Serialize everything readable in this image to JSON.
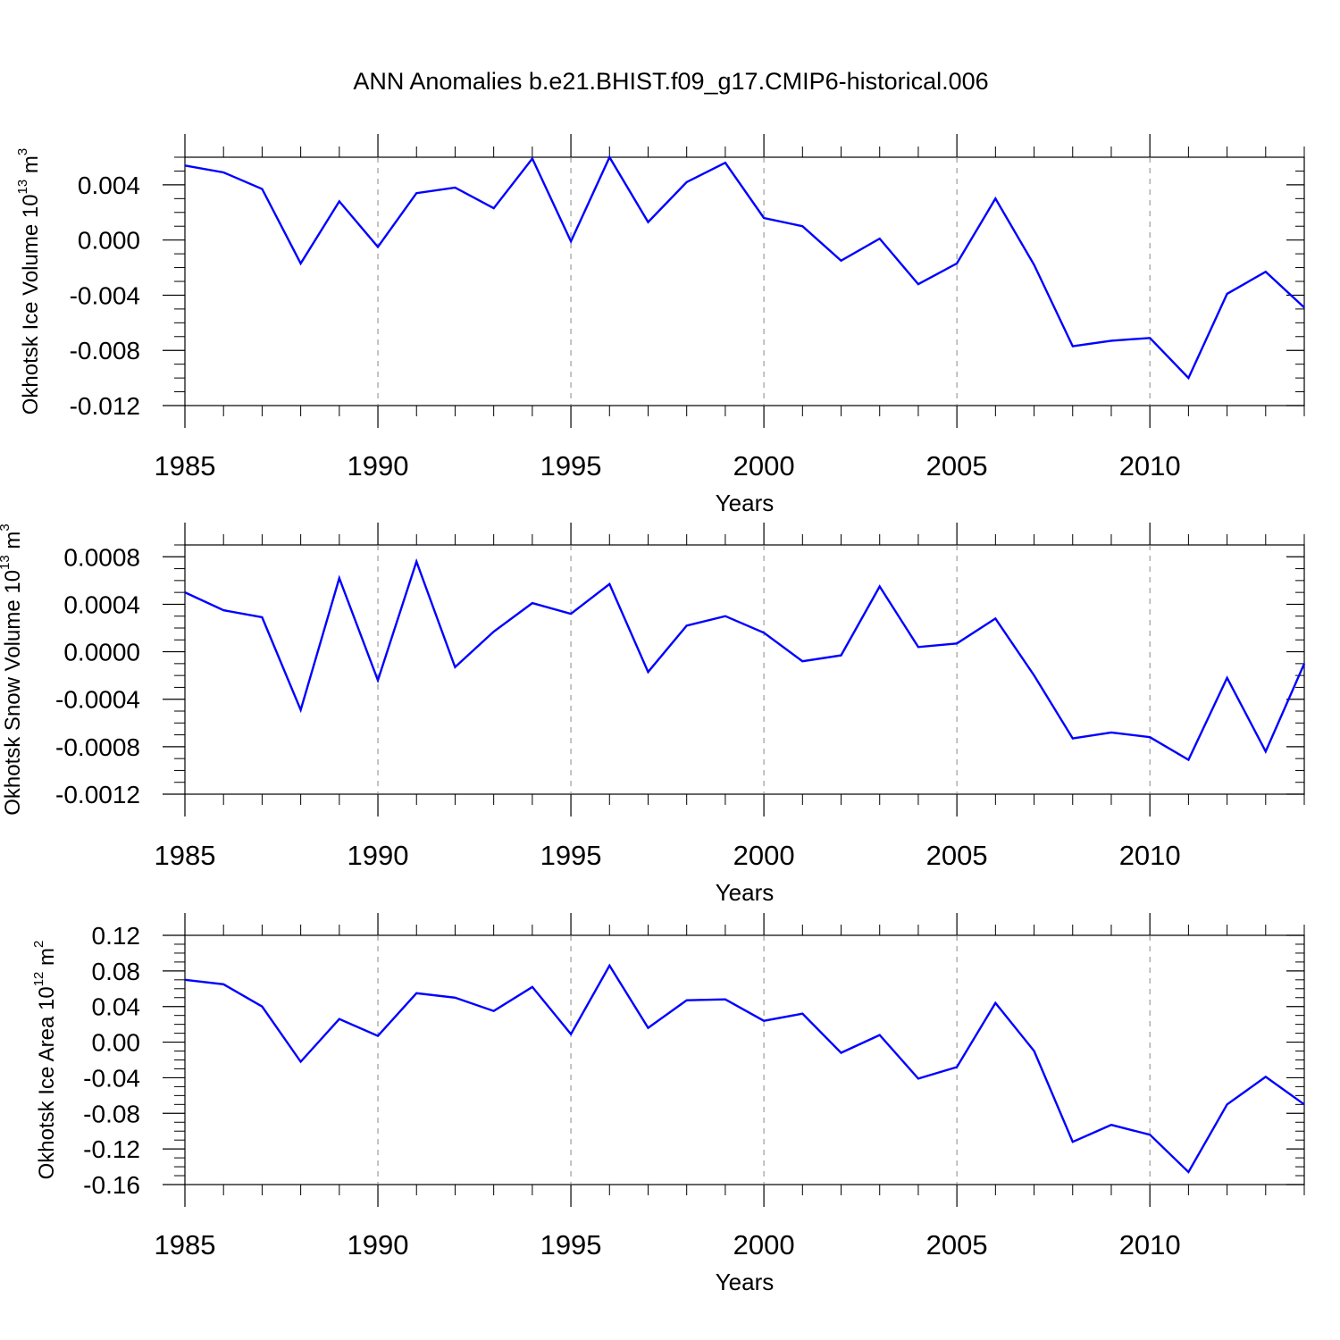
{
  "title": "ANN Anomalies b.e21.BHIST.f09_g17.CMIP6-historical.006",
  "colors": {
    "line": "#0000ff",
    "axis": "#000000",
    "grid": "#888888"
  },
  "chart_data": [
    {
      "type": "line",
      "ylabel": {
        "text": "Okhotsk Ice Volume 10",
        "exp": "13",
        "unit": " m",
        "unit_exp": "3"
      },
      "xlabel": "Years",
      "xlim": [
        1985,
        2014
      ],
      "ylim": [
        -0.012,
        0.006
      ],
      "x_ticks": [
        1985,
        1990,
        1995,
        2000,
        2005,
        2010
      ],
      "y_ticks": [
        0.004,
        0.0,
        -0.004,
        -0.008,
        -0.012
      ],
      "y_tick_labels": [
        "0.004",
        "0.000",
        "-0.004",
        "-0.008",
        "-0.012"
      ],
      "grid": "vertical dashed at major x ticks",
      "x": [
        1985,
        1986,
        1987,
        1988,
        1989,
        1990,
        1991,
        1992,
        1993,
        1994,
        1995,
        1996,
        1997,
        1998,
        1999,
        2000,
        2001,
        2002,
        2003,
        2004,
        2005,
        2006,
        2007,
        2008,
        2009,
        2010,
        2011,
        2012,
        2013,
        2014
      ],
      "values": [
        0.0054,
        0.0049,
        0.0037,
        -0.0017,
        0.0028,
        -0.0005,
        0.0034,
        0.0038,
        0.0023,
        0.0059,
        -0.0001,
        0.006,
        0.0013,
        0.0042,
        0.0056,
        0.0016,
        0.001,
        -0.0015,
        0.0001,
        -0.0032,
        -0.0017,
        0.003,
        -0.0018,
        -0.0077,
        -0.0073,
        -0.0071,
        -0.01,
        -0.0039,
        -0.0023,
        -0.0049
      ]
    },
    {
      "type": "line",
      "ylabel": {
        "text": "Okhotsk Snow Volume 10",
        "exp": "13",
        "unit": " m",
        "unit_exp": "3"
      },
      "xlabel": "Years",
      "xlim": [
        1985,
        2014
      ],
      "ylim": [
        -0.0012,
        0.0009
      ],
      "x_ticks": [
        1985,
        1990,
        1995,
        2000,
        2005,
        2010
      ],
      "y_ticks": [
        0.0008,
        0.0004,
        0.0,
        -0.0004,
        -0.0008,
        -0.0012
      ],
      "y_tick_labels": [
        "0.0008",
        "0.0004",
        "0.0000",
        "-0.0004",
        "-0.0008",
        "-0.0012"
      ],
      "grid": "vertical dashed at major x ticks",
      "x": [
        1985,
        1986,
        1987,
        1988,
        1989,
        1990,
        1991,
        1992,
        1993,
        1994,
        1995,
        1996,
        1997,
        1998,
        1999,
        2000,
        2001,
        2002,
        2003,
        2004,
        2005,
        2006,
        2007,
        2008,
        2009,
        2010,
        2011,
        2012,
        2013,
        2014
      ],
      "values": [
        0.0005,
        0.00035,
        0.00029,
        -0.00049,
        0.00062,
        -0.00024,
        0.00076,
        -0.00013,
        0.00017,
        0.00041,
        0.00032,
        0.00057,
        -0.00017,
        0.00022,
        0.0003,
        0.00016,
        -8e-05,
        -3e-05,
        0.00055,
        4e-05,
        7e-05,
        0.00028,
        -0.0002,
        -0.00073,
        -0.00068,
        -0.00072,
        -0.00091,
        -0.00022,
        -0.00084,
        -0.0001
      ]
    },
    {
      "type": "line",
      "ylabel": {
        "text": "Okhotsk Ice Area 10",
        "exp": "12",
        "unit": " m",
        "unit_exp": "2"
      },
      "xlabel": "Years",
      "xlim": [
        1985,
        2014
      ],
      "ylim": [
        -0.16,
        0.12
      ],
      "x_ticks": [
        1985,
        1990,
        1995,
        2000,
        2005,
        2010
      ],
      "y_ticks": [
        0.12,
        0.08,
        0.04,
        0.0,
        -0.04,
        -0.08,
        -0.12,
        -0.16
      ],
      "y_tick_labels": [
        "0.12",
        "0.08",
        "0.04",
        "0.00",
        "-0.04",
        "-0.08",
        "-0.12",
        "-0.16"
      ],
      "grid": "vertical dashed at major x ticks",
      "x": [
        1985,
        1986,
        1987,
        1988,
        1989,
        1990,
        1991,
        1992,
        1993,
        1994,
        1995,
        1996,
        1997,
        1998,
        1999,
        2000,
        2001,
        2002,
        2003,
        2004,
        2005,
        2006,
        2007,
        2008,
        2009,
        2010,
        2011,
        2012,
        2013,
        2014
      ],
      "values": [
        0.07,
        0.065,
        0.04,
        -0.022,
        0.026,
        0.007,
        0.055,
        0.05,
        0.035,
        0.062,
        0.009,
        0.086,
        0.016,
        0.047,
        0.048,
        0.024,
        0.032,
        -0.012,
        0.008,
        -0.041,
        -0.028,
        0.044,
        -0.01,
        -0.112,
        -0.093,
        -0.104,
        -0.146,
        -0.07,
        -0.039,
        -0.07
      ]
    }
  ]
}
